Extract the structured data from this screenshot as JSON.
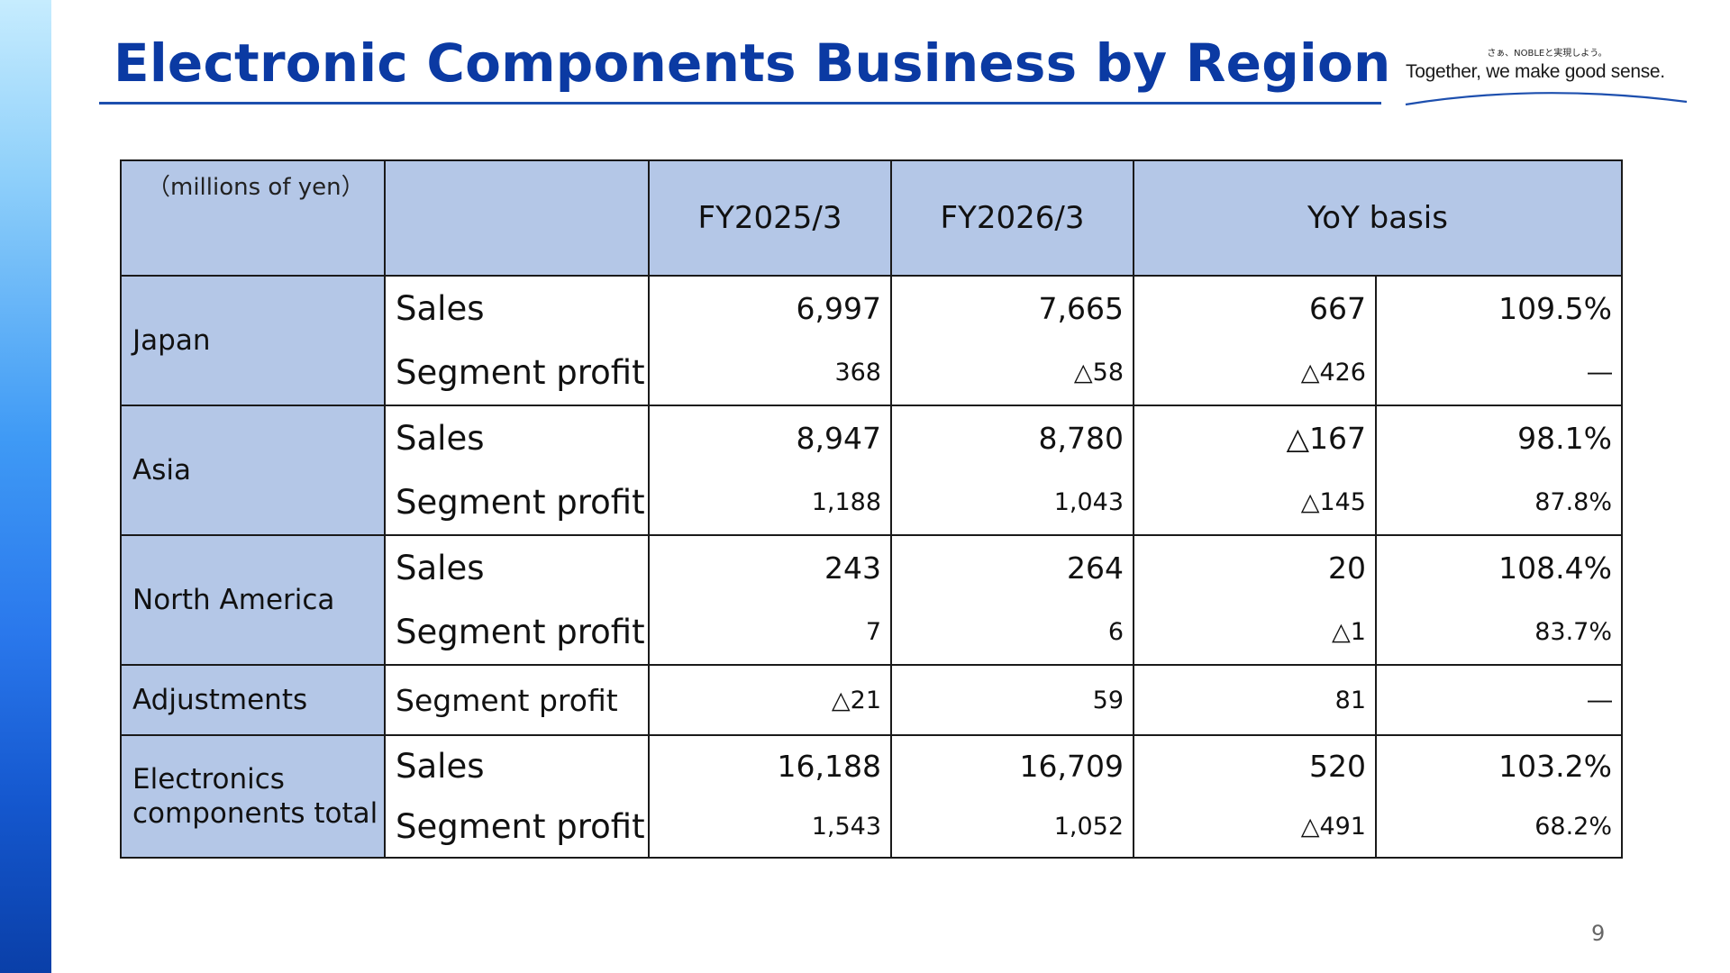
{
  "slide": {
    "title": "Electronic Components Business by Region",
    "page_number": "9"
  },
  "logo": {
    "tagline_jp": "さぁ、NOBLEと実現しよう。",
    "tagline_en": "Together, we make good sense."
  },
  "table": {
    "units": "（millions of yen）",
    "headers": {
      "fy_prev": "FY2025/3",
      "fy_curr": "FY2026/3",
      "yoy": "YoY basis"
    },
    "groups": [
      {
        "region": "Japan",
        "rows": [
          {
            "label": "Sales",
            "prev": "6,997",
            "curr": "7,665",
            "diff": "667",
            "ratio": "109.5%"
          },
          {
            "label": "Segment profit",
            "prev": "368",
            "curr": "△58",
            "diff": "△426",
            "ratio": "―"
          }
        ]
      },
      {
        "region": "Asia",
        "rows": [
          {
            "label": "Sales",
            "prev": "8,947",
            "curr": "8,780",
            "diff": "△167",
            "ratio": "98.1%"
          },
          {
            "label": "Segment profit",
            "prev": "1,188",
            "curr": "1,043",
            "diff": "△145",
            "ratio": "87.8%"
          }
        ]
      },
      {
        "region": "North America",
        "rows": [
          {
            "label": "Sales",
            "prev": "243",
            "curr": "264",
            "diff": "20",
            "ratio": "108.4%"
          },
          {
            "label": "Segment profit",
            "prev": "7",
            "curr": "6",
            "diff": "△1",
            "ratio": "83.7%"
          }
        ]
      },
      {
        "region": "Adjustments",
        "rows": [
          {
            "label": "Segment profit",
            "prev": "△21",
            "curr": "59",
            "diff": "81",
            "ratio": "―"
          }
        ]
      },
      {
        "region": "Electronics components total",
        "rows": [
          {
            "label": "Sales",
            "prev": "16,188",
            "curr": "16,709",
            "diff": "520",
            "ratio": "103.2%"
          },
          {
            "label": "Segment profit",
            "prev": "1,543",
            "curr": "1,052",
            "diff": "△491",
            "ratio": "68.2%"
          }
        ]
      }
    ]
  }
}
